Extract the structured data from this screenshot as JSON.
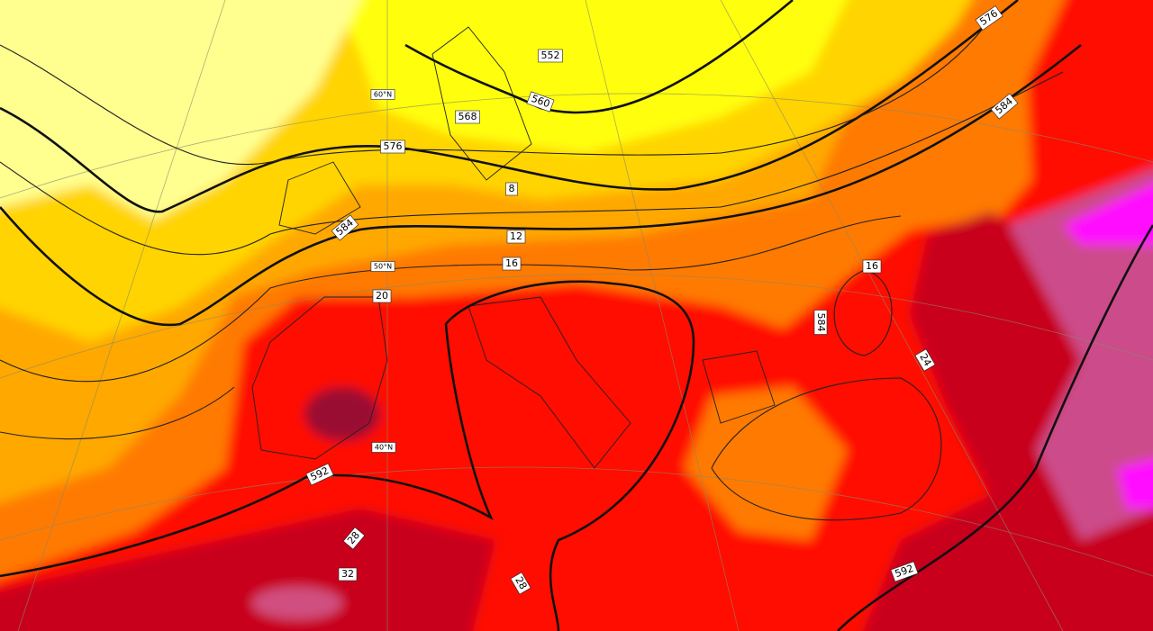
{
  "contour_labels": [
    "576",
    "584",
    "552",
    "560",
    "568",
    "576",
    "584",
    "8",
    "12",
    "16",
    "20",
    "16",
    "584",
    "24",
    "592",
    "28",
    "32",
    "28",
    "592"
  ],
  "latitude_labels": [
    "60°N",
    "50°N",
    "40°N"
  ]
}
